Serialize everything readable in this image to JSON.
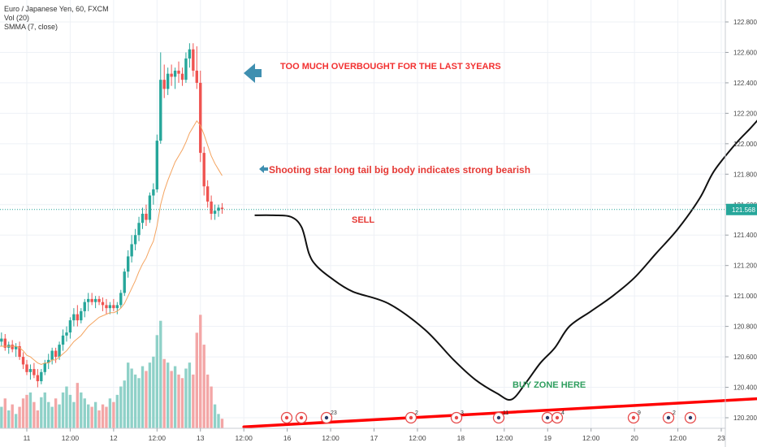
{
  "legend": {
    "symbol": "Euro / Japanese Yen, 60, FXCM",
    "volume": "Vol (20)",
    "indicator": "SMMA (7, close)"
  },
  "annotations": {
    "overbought": "TOO MUCH OVERBOUGHT FOR THE LAST 3YEARS",
    "shooting_star": "Shooting star long tail big body indicates strong bearish",
    "sell": "SELL",
    "buy_zone": "BUY ZONE HERE"
  },
  "colors": {
    "up": "#26a69a",
    "down": "#ef5350",
    "volume_up": "#8fd1c8",
    "volume_down": "#f3a6a6",
    "smma": "#f4a460",
    "projection": "#111111",
    "trendline": "#ff0000",
    "overbought_text": "#f23030",
    "star_text": "#e53935",
    "sell_text": "#e53935",
    "buy_text": "#2e9e5e",
    "arrow": "#3f8fb0",
    "price_badge": "#26a69a"
  },
  "events": [
    "2",
    "3",
    "11",
    "4",
    "9",
    "2",
    "3",
    "2"
  ],
  "chart_data": {
    "type": "candlestick",
    "title": "Euro / Japanese Yen, 60, FXCM",
    "y_axis": {
      "side": "right",
      "ylim": [
        120.15,
        122.95
      ],
      "ticks": [
        120.2,
        120.4,
        120.6,
        120.8,
        121.0,
        121.2,
        121.4,
        121.6,
        121.8,
        122.0,
        122.2,
        122.4,
        122.6,
        122.8
      ],
      "tick_labels": [
        "120.200",
        "120.400",
        "120.600",
        "120.800",
        "121.000",
        "121.200",
        "121.400",
        "121.600",
        "121.800",
        "122.000",
        "122.200",
        "122.400",
        "122.600",
        "122.800"
      ],
      "grid": true
    },
    "x_axis": {
      "bar_range": [
        -20,
        206
      ],
      "ticks": [
        {
          "bar": 0,
          "label": "11"
        },
        {
          "bar": 12,
          "label": "12:00"
        },
        {
          "bar": 24,
          "label": "12"
        },
        {
          "bar": 36,
          "label": "12:00"
        },
        {
          "bar": 48,
          "label": "13"
        },
        {
          "bar": 60,
          "label": "12:00"
        },
        {
          "bar": 72,
          "label": "16"
        },
        {
          "bar": 84,
          "label": "12:00"
        },
        {
          "bar": 96,
          "label": "17"
        },
        {
          "bar": 108,
          "label": "12:00"
        },
        {
          "bar": 120,
          "label": "18"
        },
        {
          "bar": 132,
          "label": "12:00"
        },
        {
          "bar": 144,
          "label": "19"
        },
        {
          "bar": 156,
          "label": "12:00"
        },
        {
          "bar": 168,
          "label": "20"
        },
        {
          "bar": 180,
          "label": "12:00"
        },
        {
          "bar": 192,
          "label": "23"
        }
      ],
      "grid": true
    },
    "last_price": 121.568,
    "last_price_label": "121.568",
    "candles_ohlc": [
      [
        120.68,
        120.72,
        120.62,
        120.7
      ],
      [
        120.7,
        120.74,
        120.66,
        120.68
      ],
      [
        120.68,
        120.72,
        120.64,
        120.7
      ],
      [
        120.7,
        120.76,
        120.67,
        120.72
      ],
      [
        120.72,
        120.75,
        120.64,
        120.66
      ],
      [
        120.66,
        120.7,
        120.62,
        120.68
      ],
      [
        120.68,
        120.71,
        120.63,
        120.65
      ],
      [
        120.65,
        120.69,
        120.6,
        120.67
      ],
      [
        120.67,
        120.7,
        120.58,
        120.6
      ],
      [
        120.6,
        120.63,
        120.52,
        120.55
      ],
      [
        120.55,
        120.58,
        120.48,
        120.5
      ],
      [
        120.5,
        120.55,
        120.45,
        120.52
      ],
      [
        120.52,
        120.56,
        120.46,
        120.48
      ],
      [
        120.48,
        120.52,
        120.4,
        120.44
      ],
      [
        120.44,
        120.52,
        120.42,
        120.5
      ],
      [
        120.5,
        120.58,
        120.48,
        120.56
      ],
      [
        120.56,
        120.62,
        120.52,
        120.58
      ],
      [
        120.58,
        120.66,
        120.55,
        120.64
      ],
      [
        120.64,
        120.66,
        120.56,
        120.6
      ],
      [
        120.6,
        120.7,
        120.58,
        120.68
      ],
      [
        120.68,
        120.78,
        120.64,
        120.74
      ],
      [
        120.74,
        120.8,
        120.7,
        120.76
      ],
      [
        120.76,
        120.86,
        120.72,
        120.84
      ],
      [
        120.84,
        120.92,
        120.8,
        120.88
      ],
      [
        120.88,
        120.94,
        120.8,
        120.84
      ],
      [
        120.84,
        120.92,
        120.82,
        120.9
      ],
      [
        120.9,
        120.98,
        120.86,
        120.96
      ],
      [
        120.96,
        121.02,
        120.9,
        120.98
      ],
      [
        120.98,
        121.02,
        120.94,
        120.96
      ],
      [
        120.96,
        121.0,
        120.92,
        120.98
      ],
      [
        120.98,
        121.0,
        120.94,
        120.96
      ],
      [
        120.96,
        120.99,
        120.9,
        120.94
      ],
      [
        120.94,
        120.98,
        120.88,
        120.92
      ],
      [
        120.92,
        120.96,
        120.88,
        120.94
      ],
      [
        120.94,
        120.98,
        120.9,
        120.92
      ],
      [
        120.92,
        120.96,
        120.88,
        120.94
      ],
      [
        120.94,
        121.04,
        120.92,
        121.02
      ],
      [
        121.02,
        121.18,
        121.0,
        121.16
      ],
      [
        121.16,
        121.3,
        121.12,
        121.26
      ],
      [
        121.26,
        121.4,
        121.22,
        121.34
      ],
      [
        121.34,
        121.44,
        121.3,
        121.4
      ],
      [
        121.4,
        121.52,
        121.36,
        121.48
      ],
      [
        121.48,
        121.58,
        121.44,
        121.54
      ],
      [
        121.54,
        121.6,
        121.46,
        121.5
      ],
      [
        121.5,
        121.68,
        121.48,
        121.66
      ],
      [
        121.66,
        121.74,
        121.6,
        121.7
      ],
      [
        121.7,
        122.06,
        121.68,
        122.02
      ],
      [
        122.02,
        122.6,
        122.0,
        122.42
      ],
      [
        122.42,
        122.52,
        122.3,
        122.36
      ],
      [
        122.36,
        122.5,
        122.32,
        122.46
      ],
      [
        122.46,
        122.52,
        122.38,
        122.44
      ],
      [
        122.44,
        122.5,
        122.36,
        122.48
      ],
      [
        122.48,
        122.54,
        122.4,
        122.46
      ],
      [
        122.46,
        122.5,
        122.38,
        122.42
      ],
      [
        122.42,
        122.6,
        122.4,
        122.56
      ],
      [
        122.56,
        122.66,
        122.5,
        122.62
      ],
      [
        122.62,
        122.66,
        122.44,
        122.48
      ],
      [
        122.48,
        122.64,
        122.36,
        122.4
      ],
      [
        122.4,
        122.48,
        121.88,
        121.94
      ],
      [
        121.94,
        121.98,
        121.66,
        121.72
      ],
      [
        121.72,
        121.76,
        121.58,
        121.62
      ],
      [
        121.62,
        121.66,
        121.5,
        121.54
      ],
      [
        121.54,
        121.6,
        121.5,
        121.56
      ],
      [
        121.56,
        121.6,
        121.52,
        121.58
      ],
      [
        121.58,
        121.61,
        121.54,
        121.57
      ]
    ],
    "volume_scale": [
      0,
      100
    ],
    "volumes": [
      10,
      22,
      15,
      18,
      25,
      15,
      20,
      12,
      18,
      25,
      28,
      30,
      22,
      15,
      26,
      30,
      22,
      18,
      25,
      20,
      30,
      35,
      28,
      22,
      38,
      30,
      25,
      20,
      18,
      22,
      15,
      20,
      18,
      25,
      22,
      28,
      35,
      40,
      55,
      50,
      45,
      42,
      52,
      48,
      55,
      60,
      78,
      90,
      58,
      55,
      48,
      52,
      45,
      42,
      50,
      55,
      45,
      80,
      95,
      70,
      45,
      35,
      20,
      12,
      8
    ],
    "smma": [
      120.66,
      120.66,
      120.67,
      120.67,
      120.67,
      120.67,
      120.67,
      120.67,
      120.66,
      120.64,
      120.61,
      120.6,
      120.58,
      120.56,
      120.55,
      120.56,
      120.56,
      120.58,
      120.58,
      120.6,
      120.62,
      120.64,
      120.67,
      120.7,
      120.72,
      120.74,
      120.77,
      120.8,
      120.82,
      120.84,
      120.86,
      120.87,
      120.88,
      120.89,
      120.89,
      120.9,
      120.92,
      120.95,
      121.0,
      121.05,
      121.1,
      121.16,
      121.21,
      121.25,
      121.31,
      121.36,
      121.46,
      121.6,
      121.69,
      121.76,
      121.82,
      121.88,
      121.92,
      121.96,
      122.01,
      122.07,
      122.11,
      122.15,
      122.12,
      122.06,
      121.99,
      121.92,
      121.87,
      121.83,
      121.79
    ],
    "projection": [
      [
        63,
        121.53
      ],
      [
        68,
        121.53
      ],
      [
        73,
        121.52
      ],
      [
        76,
        121.45
      ],
      [
        78,
        121.28
      ],
      [
        80,
        121.2
      ],
      [
        84,
        121.12
      ],
      [
        90,
        121.03
      ],
      [
        100,
        120.95
      ],
      [
        110,
        120.78
      ],
      [
        118,
        120.58
      ],
      [
        124,
        120.45
      ],
      [
        130,
        120.36
      ],
      [
        134,
        120.32
      ],
      [
        138,
        120.43
      ],
      [
        142,
        120.56
      ],
      [
        146,
        120.66
      ],
      [
        150,
        120.8
      ],
      [
        156,
        120.9
      ],
      [
        162,
        121.0
      ],
      [
        168,
        121.12
      ],
      [
        174,
        121.28
      ],
      [
        180,
        121.44
      ],
      [
        186,
        121.64
      ],
      [
        190,
        121.82
      ],
      [
        196,
        122.0
      ],
      [
        200,
        122.1
      ],
      [
        203,
        122.18
      ]
    ],
    "trendline": [
      [
        60,
        120.14
      ],
      [
        206,
        120.33
      ]
    ],
    "side_dash": [
      [
        202,
        122.22
      ],
      [
        206,
        122.25
      ]
    ]
  }
}
